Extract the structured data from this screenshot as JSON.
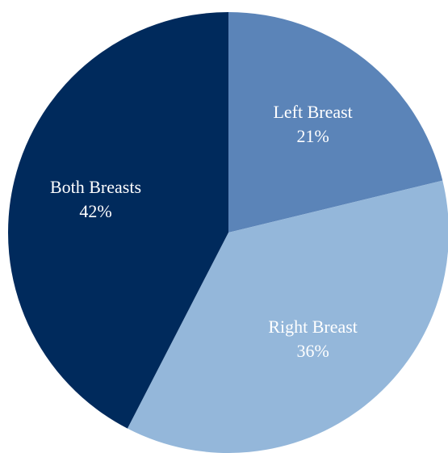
{
  "chart_data": {
    "type": "pie",
    "categories": [
      "Left Breast",
      "Right Breast",
      "Both Breasts"
    ],
    "values": [
      21,
      36,
      42
    ],
    "value_labels": [
      "21%",
      "36%",
      "42%"
    ],
    "colors": [
      "#5b84b8",
      "#94b7da",
      "#002a5c"
    ]
  }
}
